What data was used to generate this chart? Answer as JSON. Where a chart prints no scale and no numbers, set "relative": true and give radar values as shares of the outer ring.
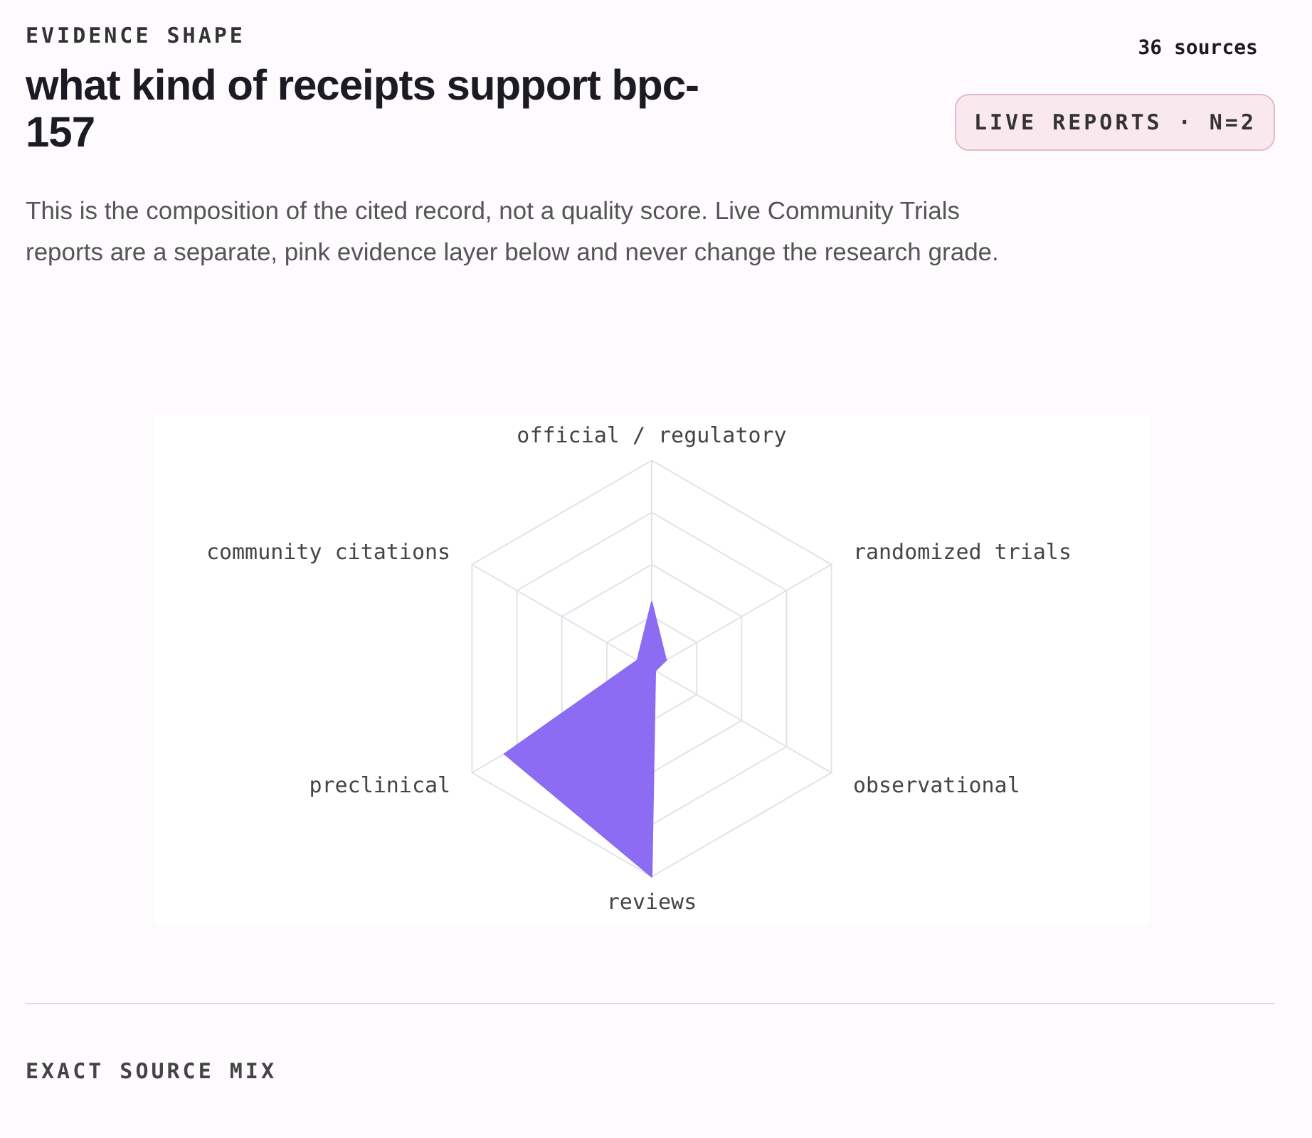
{
  "chart_data": {
    "type": "radar",
    "title": "what kind of receipts support bpc-157",
    "subtitle": "This is the composition of the cited record, not a quality score. Live Community Trials reports are a separate, pink evidence layer below and never change the research grade.",
    "annotations": [
      "EVIDENCE SHAPE",
      "36 sources",
      "LIVE REPORTS · N=2",
      "EXACT SOURCE MIX"
    ],
    "categories": [
      "official / regulatory",
      "randomized trials",
      "observational",
      "reviews",
      "preclinical",
      "community citations"
    ],
    "relative": true,
    "grid": true,
    "series": [
      {
        "color": "#8c6cf2",
        "values": [
          0.32,
          0.08,
          0.02,
          1,
          0.82,
          0.08
        ]
      }
    ]
  }
}
